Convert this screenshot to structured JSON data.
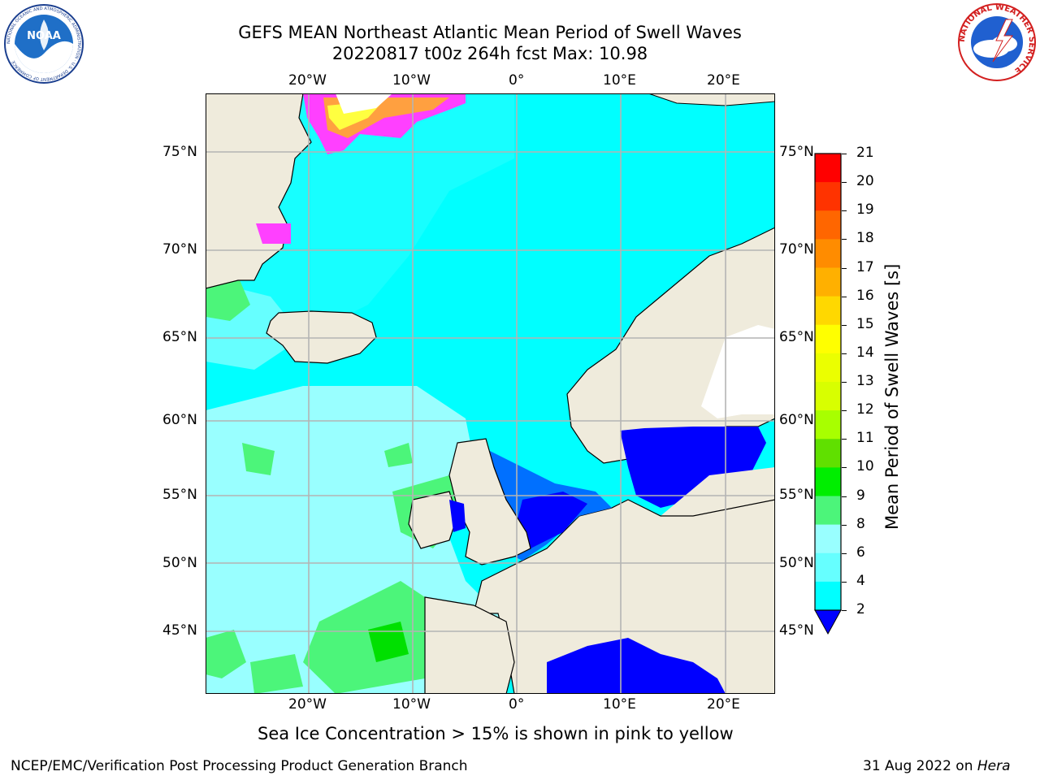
{
  "header": {
    "title_line1": "GEFS MEAN Northeast Atlantic Mean Period of Swell Waves",
    "title_line2": "20220817 t00z 264h fcst   Max: 10.98"
  },
  "logos": {
    "noaa": {
      "text": "NOAA",
      "ring_text": "NATIONAL OCEANIC AND ATMOSPHERIC ADMINISTRATION · U.S. DEPARTMENT OF COMMERCE"
    },
    "nws": {
      "ring_text": "NATIONAL WEATHER SERVICE"
    }
  },
  "map": {
    "lon_ticks": [
      "20°W",
      "10°W",
      "0°",
      "10°E",
      "20°E"
    ],
    "lat_ticks": [
      "75°N",
      "70°N",
      "65°N",
      "60°N",
      "55°N",
      "50°N",
      "45°N"
    ],
    "colors": {
      "land": "#efebdc",
      "coast": "#000000",
      "grid": "#b4b4b4",
      "swell_4_6": "#00ffff",
      "swell_6_8": "#66ffff",
      "swell_8_9": "#99ffff",
      "swell_9_10": "#4cf57a",
      "swell_10_11": "#00e000",
      "swell_2_4": "#0070ff",
      "swell_lt2": "#0000ff",
      "ice_pink": "#ff40ff",
      "ice_orange": "#ffa040",
      "ice_yellow": "#ffff40",
      "no_data": "#ffffff"
    }
  },
  "colorbar": {
    "title": "Mean Period of Swell Waves [s]",
    "levels": [
      "21",
      "20",
      "19",
      "18",
      "17",
      "16",
      "15",
      "14",
      "13",
      "12",
      "11",
      "10",
      "9",
      "8",
      "6",
      "4",
      "2"
    ],
    "colors": [
      "#ff0000",
      "#ff3300",
      "#ff6600",
      "#ff8c00",
      "#ffb000",
      "#ffd800",
      "#ffff00",
      "#ebff00",
      "#d8ff00",
      "#a8ff00",
      "#60e000",
      "#00ee00",
      "#4cf57a",
      "#99ffff",
      "#66ffff",
      "#00ffff",
      "#0070ff"
    ],
    "underflow_color": "#0000ff"
  },
  "note": "Sea Ice Concentration > 15% is shown in pink to yellow",
  "footer": {
    "left": "NCEP/EMC/Verification Post Processing Product Generation Branch",
    "right_prefix": "31 Aug 2022 on ",
    "right_host": "Hera"
  }
}
